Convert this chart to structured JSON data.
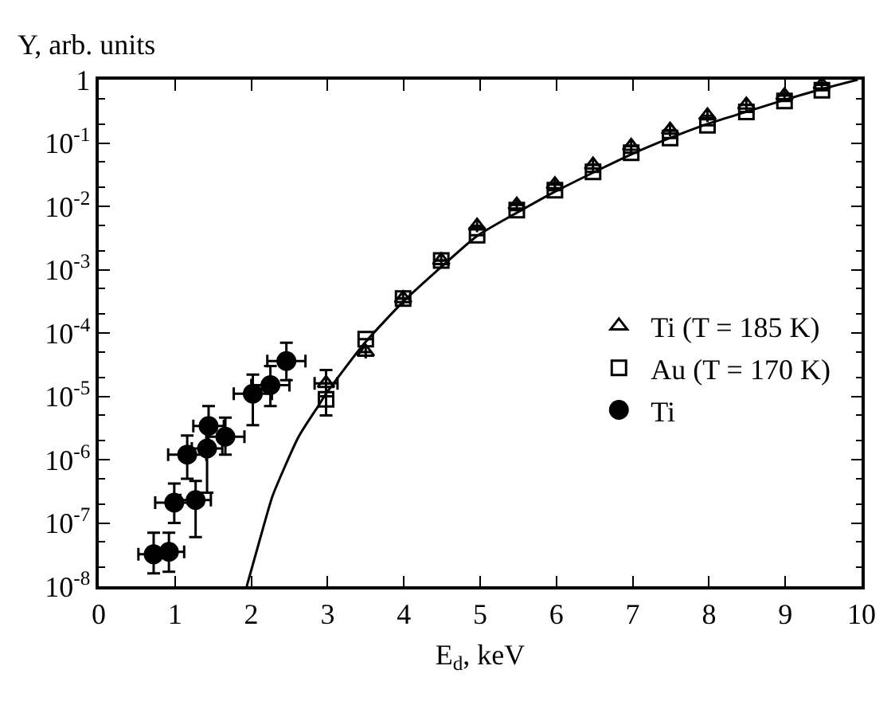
{
  "chart_data": {
    "type": "scatter",
    "xlabel": "E$_{d}$, keV",
    "ylabel": "Y, arb. units",
    "log": "y",
    "legend": "right",
    "xlim": [
      0,
      10
    ],
    "xticks": [
      0,
      1,
      2,
      3,
      4,
      5,
      6,
      7,
      8,
      9,
      10
    ],
    "ylim": [
      1e-08,
      1
    ],
    "yticks": [
      {
        "value": 1e-08,
        "label": "10$^{-8}$"
      },
      {
        "value": 1e-07,
        "label": "10$^{-7}$"
      },
      {
        "value": 1e-06,
        "label": "10$^{-6}$"
      },
      {
        "value": 1e-05,
        "label": "10$^{-5}$"
      },
      {
        "value": 0.0001,
        "label": "10$^{-4}$"
      },
      {
        "value": 0.001,
        "label": "10$^{-3}$"
      },
      {
        "value": 0.01,
        "label": "10$^{-2}$"
      },
      {
        "value": 0.1,
        "label": "10$^{-1}$"
      },
      1
    ],
    "series": [
      {
        "name": "Ti (T = 185 K)",
        "color": "#000000",
        "marker": "triangle",
        "x": [
          2.98,
          3.5,
          3.99,
          4.49,
          4.96,
          5.48,
          5.98,
          6.48,
          6.98,
          7.49,
          7.98,
          8.49,
          8.99,
          9.48
        ],
        "values": [
          1.6e-05,
          5e-05,
          0.00035,
          0.0014,
          0.0049,
          0.0105,
          0.022,
          0.045,
          0.089,
          0.16,
          0.27,
          0.4,
          0.56,
          0.83
        ],
        "errors": [
          [
            1e-05,
            2.6e-05
          ],
          null,
          null,
          null,
          null,
          null,
          null,
          null,
          null,
          null,
          null,
          null,
          null,
          null
        ],
        "xerrors": [
          0.15,
          null,
          null,
          null,
          null,
          null,
          null,
          null,
          null,
          null,
          null,
          null,
          null,
          null
        ]
      },
      {
        "name": "Au (T = 170 K)",
        "color": "#000000",
        "marker": "square",
        "x": [
          2.98,
          3.5,
          3.99,
          4.49,
          4.96,
          5.48,
          5.98,
          6.48,
          6.98,
          7.49,
          7.98,
          8.49,
          8.99,
          9.48
        ],
        "values": [
          9e-06,
          8e-05,
          0.00035,
          0.0014,
          0.0035,
          0.0087,
          0.018,
          0.035,
          0.07,
          0.12,
          0.19,
          0.31,
          0.46,
          0.68
        ],
        "errors": [
          [
            5e-06,
            1.6e-05
          ],
          null,
          null,
          null,
          null,
          null,
          null,
          null,
          null,
          null,
          null,
          null,
          null,
          null
        ]
      },
      {
        "name": "Ti",
        "color": "#000000",
        "marker": "circle",
        "x": [
          0.72,
          0.92,
          0.99,
          1.16,
          1.27,
          1.42,
          1.44,
          1.66,
          2.02,
          2.25,
          2.46
        ],
        "values": [
          3.2e-08,
          3.5e-08,
          2.1e-07,
          1.2e-06,
          2.3e-07,
          1.5e-06,
          3.4e-06,
          2.3e-06,
          1.1e-05,
          1.5e-05,
          3.6e-05
        ],
        "errors": [
          [
            1.6e-08,
            7e-08
          ],
          [
            1.7e-08,
            7e-08
          ],
          [
            1e-07,
            4.2e-07
          ],
          [
            5e-07,
            2.4e-06
          ],
          [
            6e-08,
            4.6e-07
          ],
          [
            3e-07,
            3e-06
          ],
          [
            1.7e-06,
            7e-06
          ],
          [
            1.2e-06,
            4.6e-06
          ],
          [
            3.5e-06,
            2.2e-05
          ],
          [
            7e-06,
            3e-05
          ],
          [
            1.8e-05,
            7e-05
          ]
        ],
        "xerrors": [
          0.2,
          0.2,
          0.25,
          0.25,
          0.2,
          0.2,
          0.2,
          0.25,
          0.25,
          0.25,
          0.25
        ]
      },
      {
        "type": "line",
        "color": "#000000",
        "marker": "none",
        "line_style": "solid",
        "x": [
          1.94,
          2.2,
          2.28,
          2.62,
          2.89,
          2.98,
          3.48,
          3.99,
          4.49,
          4.96,
          5.48,
          5.98,
          6.48,
          6.98,
          7.49,
          7.98,
          8.49,
          8.99,
          9.48,
          9.95
        ],
        "values": [
          1e-08,
          1.3e-07,
          2.7e-07,
          2.3e-06,
          7.4e-06,
          1.1e-05,
          6.8e-05,
          0.00031,
          0.0011,
          0.0034,
          0.0079,
          0.017,
          0.034,
          0.066,
          0.12,
          0.2,
          0.31,
          0.48,
          0.71,
          1.0
        ]
      }
    ]
  }
}
